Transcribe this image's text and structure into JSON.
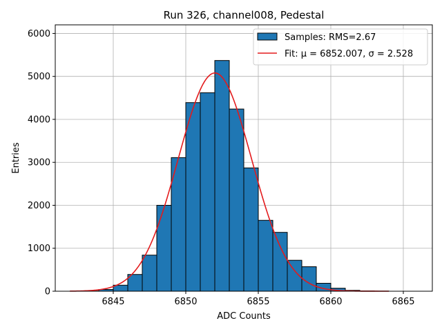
{
  "chart_data": {
    "type": "bar",
    "title": "Run 326, channel008, Pedestal",
    "xlabel": "ADC Counts",
    "ylabel": "Entries",
    "xlim": [
      6841,
      6867
    ],
    "ylim": [
      0,
      6200
    ],
    "x_ticks": [
      6845,
      6850,
      6855,
      6860,
      6865
    ],
    "y_ticks": [
      0,
      1000,
      2000,
      3000,
      4000,
      5000,
      6000
    ],
    "grid": true,
    "legend_position": "top-right",
    "bar_color": "#1f77b4",
    "fit_color": "#e31a1c",
    "bin_width": 1,
    "bins": [
      6843,
      6844,
      6845,
      6846,
      6847,
      6848,
      6849,
      6850,
      6851,
      6852,
      6853,
      6854,
      6855,
      6856,
      6857,
      6858,
      6859,
      6860,
      6861,
      6862,
      6863
    ],
    "counts": [
      5,
      40,
      140,
      390,
      840,
      2000,
      3110,
      4390,
      4620,
      5370,
      4240,
      2870,
      1650,
      1370,
      720,
      570,
      185,
      70,
      20,
      8,
      3
    ],
    "series": [
      {
        "name": "Samples: RMS=2.67",
        "kind": "histogram"
      },
      {
        "name": "Fit: μ = 6852.007, σ = 2.528",
        "kind": "gaussian",
        "mu": 6852.007,
        "sigma": 2.528,
        "amplitude": 5080,
        "x_range": [
          6842,
          6864
        ]
      }
    ]
  }
}
